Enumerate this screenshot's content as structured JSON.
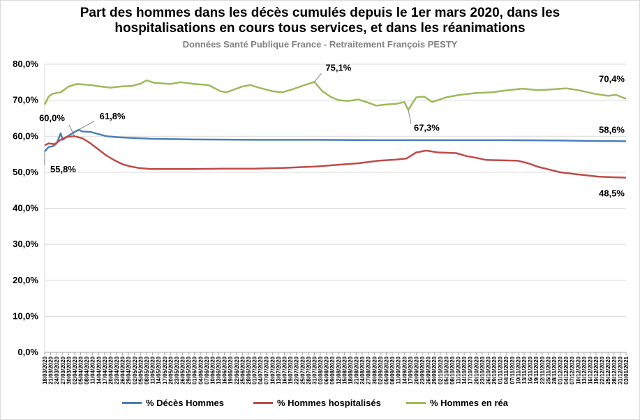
{
  "chart_data": {
    "type": "line",
    "title": "Part des hommes dans les décès cumulés depuis le 1er mars 2020, dans les hospitalisations en cours tous services, et dans les réanimations",
    "title_lines": [
      "Part des hommes dans les décès cumulés depuis le 1er mars 2020, dans les",
      "hospitalisations en cours tous services, et dans les réanimations"
    ],
    "subtitle": "Données Santé Publique France - Retraitement François PESTY",
    "xlabel": "",
    "ylabel": "",
    "ylim": [
      0,
      80
    ],
    "yticks": [
      "0,0%",
      "10,0%",
      "20,0%",
      "30,0%",
      "40,0%",
      "50,0%",
      "60,0%",
      "70,0%",
      "80,0%"
    ],
    "xlim": [
      "18/03/2020",
      "03/01/2021"
    ],
    "x_tick_labels": [
      "18/03/2020",
      "21/03/2020",
      "24/03/2020",
      "27/03/2020",
      "30/03/2020",
      "02/04/2020",
      "05/04/2020",
      "08/04/2020",
      "11/04/2020",
      "14/04/2020",
      "17/04/2020",
      "20/04/2020",
      "23/04/2020",
      "26/04/2020",
      "29/04/2020",
      "02/05/2020",
      "05/05/2020",
      "08/05/2020",
      "11/05/2020",
      "14/05/2020",
      "17/05/2020",
      "20/05/2020",
      "23/05/2020",
      "26/05/2020",
      "29/05/2020",
      "01/06/2020",
      "04/06/2020",
      "07/06/2020",
      "10/06/2020",
      "13/06/2020",
      "16/06/2020",
      "19/06/2020",
      "22/06/2020",
      "25/06/2020",
      "28/06/2020",
      "01/07/2020",
      "04/07/2020",
      "07/07/2020",
      "10/07/2020",
      "13/07/2020",
      "16/07/2020",
      "19/07/2020",
      "22/07/2020",
      "25/07/2020",
      "28/07/2020",
      "31/07/2020",
      "03/08/2020",
      "06/08/2020",
      "09/08/2020",
      "12/08/2020",
      "15/08/2020",
      "18/08/2020",
      "21/08/2020",
      "24/08/2020",
      "27/08/2020",
      "30/08/2020",
      "02/09/2020",
      "05/09/2020",
      "08/09/2020",
      "11/09/2020",
      "14/09/2020",
      "17/09/2020",
      "20/09/2020",
      "23/09/2020",
      "26/09/2020",
      "29/09/2020",
      "02/10/2020",
      "05/10/2020",
      "08/10/2020",
      "11/10/2020",
      "14/10/2020",
      "17/10/2020",
      "20/10/2020",
      "23/10/2020",
      "26/10/2020",
      "29/10/2020",
      "01/11/2020",
      "04/11/2020",
      "07/11/2020",
      "10/11/2020",
      "13/11/2020",
      "16/11/2020",
      "19/11/2020",
      "22/11/2020",
      "25/11/2020",
      "28/11/2020",
      "01/12/2020",
      "04/12/2020",
      "07/12/2020",
      "10/12/2020",
      "13/12/2020",
      "16/12/2020",
      "19/12/2020",
      "22/12/2020",
      "25/12/2020",
      "28/12/2020",
      "31/12/2020",
      "03/01/2021"
    ],
    "grid": true,
    "legend_position": "bottom",
    "series": [
      {
        "name": "% Décès Hommes",
        "color": "#4a7ebb",
        "points": [
          [
            "18/03/2020",
            55.8
          ],
          [
            "20/03/2020",
            57.0
          ],
          [
            "22/03/2020",
            57.2
          ],
          [
            "24/03/2020",
            58.0
          ],
          [
            "26/03/2020",
            60.8
          ],
          [
            "27/03/2020",
            59.0
          ],
          [
            "29/03/2020",
            59.8
          ],
          [
            "31/03/2020",
            60.5
          ],
          [
            "02/04/2020",
            61.2
          ],
          [
            "04/04/2020",
            61.8
          ],
          [
            "06/04/2020",
            61.3
          ],
          [
            "10/04/2020",
            61.2
          ],
          [
            "14/04/2020",
            60.6
          ],
          [
            "18/04/2020",
            60.0
          ],
          [
            "24/04/2020",
            59.7
          ],
          [
            "01/05/2020",
            59.5
          ],
          [
            "10/05/2020",
            59.3
          ],
          [
            "20/05/2020",
            59.2
          ],
          [
            "01/06/2020",
            59.1
          ],
          [
            "01/07/2020",
            59.0
          ],
          [
            "01/08/2020",
            59.0
          ],
          [
            "01/09/2020",
            58.9
          ],
          [
            "01/10/2020",
            58.9
          ],
          [
            "01/11/2020",
            58.9
          ],
          [
            "01/12/2020",
            58.8
          ],
          [
            "15/12/2020",
            58.7
          ],
          [
            "03/01/2021",
            58.6
          ]
        ]
      },
      {
        "name": "% Hommes hospitalisés",
        "color": "#be4b48",
        "points": [
          [
            "18/03/2020",
            57.5
          ],
          [
            "20/03/2020",
            58.0
          ],
          [
            "23/03/2020",
            57.8
          ],
          [
            "26/03/2020",
            59.0
          ],
          [
            "29/03/2020",
            59.8
          ],
          [
            "02/04/2020",
            60.0
          ],
          [
            "06/04/2020",
            59.4
          ],
          [
            "10/04/2020",
            58.0
          ],
          [
            "14/04/2020",
            56.3
          ],
          [
            "18/04/2020",
            54.6
          ],
          [
            "22/04/2020",
            53.3
          ],
          [
            "26/04/2020",
            52.2
          ],
          [
            "30/04/2020",
            51.6
          ],
          [
            "04/05/2020",
            51.2
          ],
          [
            "10/05/2020",
            50.9
          ],
          [
            "20/05/2020",
            50.9
          ],
          [
            "01/06/2020",
            50.9
          ],
          [
            "15/06/2020",
            51.0
          ],
          [
            "01/07/2020",
            51.0
          ],
          [
            "15/07/2020",
            51.2
          ],
          [
            "01/08/2020",
            51.6
          ],
          [
            "15/08/2020",
            52.2
          ],
          [
            "22/08/2020",
            52.5
          ],
          [
            "01/09/2020",
            53.2
          ],
          [
            "10/09/2020",
            53.5
          ],
          [
            "15/09/2020",
            53.8
          ],
          [
            "20/09/2020",
            55.5
          ],
          [
            "25/09/2020",
            56.0
          ],
          [
            "01/10/2020",
            55.5
          ],
          [
            "10/10/2020",
            55.3
          ],
          [
            "15/10/2020",
            54.5
          ],
          [
            "20/10/2020",
            54.0
          ],
          [
            "25/10/2020",
            53.4
          ],
          [
            "01/11/2020",
            53.3
          ],
          [
            "10/11/2020",
            53.2
          ],
          [
            "15/11/2020",
            52.5
          ],
          [
            "20/11/2020",
            51.5
          ],
          [
            "25/11/2020",
            50.8
          ],
          [
            "01/12/2020",
            50.0
          ],
          [
            "10/12/2020",
            49.4
          ],
          [
            "20/12/2020",
            48.8
          ],
          [
            "28/12/2020",
            48.6
          ],
          [
            "03/01/2021",
            48.5
          ]
        ]
      },
      {
        "name": "% Hommes en réa",
        "color": "#9bbb59",
        "points": [
          [
            "18/03/2020",
            68.8
          ],
          [
            "20/03/2020",
            71.0
          ],
          [
            "22/03/2020",
            71.8
          ],
          [
            "26/03/2020",
            72.2
          ],
          [
            "30/03/2020",
            73.8
          ],
          [
            "03/04/2020",
            74.5
          ],
          [
            "10/04/2020",
            74.2
          ],
          [
            "15/04/2020",
            73.8
          ],
          [
            "20/04/2020",
            73.5
          ],
          [
            "25/04/2020",
            73.8
          ],
          [
            "01/05/2020",
            74.0
          ],
          [
            "05/05/2020",
            74.6
          ],
          [
            "08/05/2020",
            75.5
          ],
          [
            "12/05/2020",
            74.8
          ],
          [
            "20/05/2020",
            74.5
          ],
          [
            "25/05/2020",
            75.0
          ],
          [
            "01/06/2020",
            74.5
          ],
          [
            "08/06/2020",
            74.2
          ],
          [
            "14/06/2020",
            72.5
          ],
          [
            "17/06/2020",
            72.2
          ],
          [
            "21/06/2020",
            73.0
          ],
          [
            "25/06/2020",
            73.8
          ],
          [
            "29/06/2020",
            74.2
          ],
          [
            "05/07/2020",
            73.2
          ],
          [
            "10/07/2020",
            72.5
          ],
          [
            "15/07/2020",
            72.2
          ],
          [
            "20/07/2020",
            73.0
          ],
          [
            "25/07/2020",
            74.0
          ],
          [
            "31/07/2020",
            75.1
          ],
          [
            "04/08/2020",
            72.5
          ],
          [
            "08/08/2020",
            71.0
          ],
          [
            "12/08/2020",
            70.0
          ],
          [
            "17/08/2020",
            69.8
          ],
          [
            "22/08/2020",
            70.2
          ],
          [
            "26/08/2020",
            69.5
          ],
          [
            "31/08/2020",
            68.5
          ],
          [
            "05/09/2020",
            68.8
          ],
          [
            "10/09/2020",
            69.0
          ],
          [
            "14/09/2020",
            69.5
          ],
          [
            "16/09/2020",
            67.3
          ],
          [
            "20/09/2020",
            70.8
          ],
          [
            "24/09/2020",
            71.0
          ],
          [
            "28/09/2020",
            69.5
          ],
          [
            "05/10/2020",
            70.8
          ],
          [
            "12/10/2020",
            71.5
          ],
          [
            "20/10/2020",
            72.0
          ],
          [
            "28/10/2020",
            72.2
          ],
          [
            "05/11/2020",
            72.8
          ],
          [
            "12/11/2020",
            73.2
          ],
          [
            "20/11/2020",
            72.8
          ],
          [
            "27/11/2020",
            73.0
          ],
          [
            "04/12/2020",
            73.3
          ],
          [
            "10/12/2020",
            72.8
          ],
          [
            "18/12/2020",
            71.8
          ],
          [
            "25/12/2020",
            71.2
          ],
          [
            "29/12/2020",
            71.5
          ],
          [
            "03/01/2021",
            70.4
          ]
        ]
      }
    ],
    "annotations": [
      {
        "text": "55,8%",
        "x": "18/03/2020",
        "y": 55.8
      },
      {
        "text": "60,0%",
        "x": "02/04/2020",
        "y": 60.0
      },
      {
        "text": "61,8%",
        "x": "04/04/2020",
        "y": 61.8
      },
      {
        "text": "75,1%",
        "x": "31/07/2020",
        "y": 75.1
      },
      {
        "text": "67,3%",
        "x": "16/09/2020",
        "y": 67.3
      },
      {
        "text": "70,4%",
        "x": "03/01/2021",
        "y": 70.4
      },
      {
        "text": "58,6%",
        "x": "03/01/2021",
        "y": 58.6
      },
      {
        "text": "48,5%",
        "x": "03/01/2021",
        "y": 48.5
      }
    ]
  }
}
